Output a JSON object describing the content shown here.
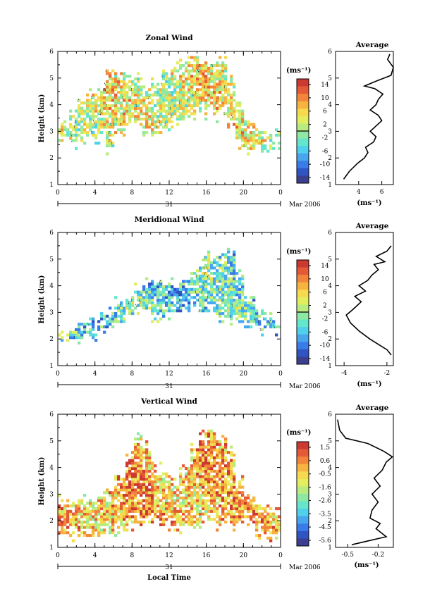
{
  "chart_data": [
    {
      "type": "heatmap",
      "title": "Zonal Wind",
      "ylabel": "Height (km)",
      "ylim": [
        1,
        6
      ],
      "yticks": [
        "1",
        "2",
        "3",
        "4",
        "5",
        "6"
      ],
      "xlim": [
        0,
        24
      ],
      "xticks": [
        "0",
        "4",
        "8",
        "12",
        "16",
        "20",
        "0"
      ],
      "date_day": "31",
      "date_month": "Mar 2006",
      "colorbar": {
        "unit": "(ms⁻¹)",
        "ticks": [
          "14",
          "10",
          "6",
          "2",
          "-2",
          "-6",
          "-10",
          "-14"
        ],
        "levels": [
          14,
          10,
          6,
          2,
          -2,
          -6,
          -10,
          -14
        ],
        "vmin": -16,
        "vmax": 16,
        "zero_line": 0
      },
      "field": {
        "coverage": [
          [
            2.6,
            3.2
          ],
          [
            2.6,
            3.6
          ],
          [
            2.7,
            4.2
          ],
          [
            2.8,
            4.4
          ],
          [
            2.8,
            4.6
          ],
          [
            2.4,
            5.2
          ],
          [
            2.9,
            5.2
          ],
          [
            3.2,
            4.9
          ],
          [
            3.3,
            5.0
          ],
          [
            3.1,
            4.7
          ],
          [
            2.9,
            4.8
          ],
          [
            3.0,
            5.2
          ],
          [
            3.4,
            5.4
          ],
          [
            3.4,
            5.6
          ],
          [
            3.6,
            5.8
          ],
          [
            3.7,
            5.6
          ],
          [
            3.7,
            5.5
          ],
          [
            3.6,
            5.6
          ],
          [
            3.3,
            5.0
          ],
          [
            2.5,
            4.1
          ],
          [
            2.3,
            3.4
          ],
          [
            2.2,
            3.0
          ],
          [
            2.3,
            2.8
          ],
          [
            2.3,
            2.9
          ]
        ],
        "mean": 3.0
      },
      "average_profile": {
        "title": "Average",
        "xlabel": "(ms⁻¹)",
        "xlim": [
          2,
          7
        ],
        "xticks": [
          "4",
          "6"
        ],
        "xtick_values": [
          4,
          6
        ],
        "ylim": [
          1,
          6
        ],
        "yticks": [
          "1",
          "2",
          "3",
          "4",
          "5",
          "6"
        ],
        "values": [
          [
            2.7,
            1.2
          ],
          [
            3.2,
            1.5
          ],
          [
            3.9,
            1.8
          ],
          [
            4.5,
            2.0
          ],
          [
            4.8,
            2.2
          ],
          [
            4.6,
            2.4
          ],
          [
            5.3,
            2.6
          ],
          [
            5.5,
            2.8
          ],
          [
            5.0,
            3.0
          ],
          [
            5.5,
            3.2
          ],
          [
            6.0,
            3.4
          ],
          [
            5.7,
            3.6
          ],
          [
            5.0,
            3.8
          ],
          [
            5.5,
            4.0
          ],
          [
            5.7,
            4.2
          ],
          [
            6.1,
            4.4
          ],
          [
            5.4,
            4.6
          ],
          [
            4.5,
            4.7
          ],
          [
            5.6,
            4.9
          ],
          [
            6.8,
            5.1
          ],
          [
            7.0,
            5.4
          ],
          [
            6.5,
            5.7
          ],
          [
            6.7,
            5.9
          ]
        ]
      }
    },
    {
      "type": "heatmap",
      "title": "Meridional Wind",
      "ylabel": "Height (km)",
      "ylim": [
        1,
        6
      ],
      "yticks": [
        "1",
        "2",
        "3",
        "4",
        "5",
        "6"
      ],
      "xlim": [
        0,
        24
      ],
      "xticks": [
        "0",
        "4",
        "8",
        "12",
        "16",
        "20",
        "0"
      ],
      "date_day": "31",
      "date_month": "Mar 2006",
      "colorbar": {
        "unit": "(ms⁻¹)",
        "ticks": [
          "14",
          "10",
          "6",
          "2",
          "-2",
          "-6",
          "-10",
          "-14"
        ],
        "levels": [
          14,
          10,
          6,
          2,
          -2,
          -6,
          -10,
          -14
        ],
        "vmin": -16,
        "vmax": 16,
        "zero_line": 0
      },
      "field": {
        "coverage": [
          [
            2.0,
            2.2
          ],
          [
            2.0,
            2.4
          ],
          [
            2.0,
            2.6
          ],
          [
            2.1,
            2.6
          ],
          [
            2.3,
            2.8
          ],
          [
            2.4,
            3.0
          ],
          [
            2.6,
            3.4
          ],
          [
            2.8,
            3.6
          ],
          [
            3.1,
            3.9
          ],
          [
            3.0,
            4.1
          ],
          [
            2.9,
            4.2
          ],
          [
            2.9,
            4.0
          ],
          [
            3.0,
            4.1
          ],
          [
            3.0,
            4.2
          ],
          [
            3.2,
            4.5
          ],
          [
            3.0,
            5.0
          ],
          [
            3.0,
            5.3
          ],
          [
            2.8,
            5.2
          ],
          [
            2.7,
            5.4
          ],
          [
            2.6,
            4.5
          ],
          [
            2.4,
            3.6
          ],
          [
            2.4,
            3.0
          ],
          [
            2.4,
            2.8
          ],
          [
            2.4,
            2.6
          ]
        ],
        "mean": -4.0
      },
      "average_profile": {
        "title": "Average",
        "xlabel": "(ms⁻¹)",
        "xlim": [
          -4.4,
          -1.7
        ],
        "xticks": [
          "-4",
          "-2"
        ],
        "xtick_values": [
          -4,
          -2
        ],
        "ylim": [
          1,
          6
        ],
        "yticks": [
          "1",
          "2",
          "3",
          "4",
          "5",
          "6"
        ],
        "values": [
          [
            -1.8,
            1.4
          ],
          [
            -2.0,
            1.6
          ],
          [
            -2.4,
            1.8
          ],
          [
            -2.8,
            2.0
          ],
          [
            -3.3,
            2.3
          ],
          [
            -3.7,
            2.6
          ],
          [
            -3.9,
            2.9
          ],
          [
            -3.6,
            3.1
          ],
          [
            -3.2,
            3.4
          ],
          [
            -3.5,
            3.6
          ],
          [
            -3.0,
            3.8
          ],
          [
            -3.3,
            4.0
          ],
          [
            -2.9,
            4.2
          ],
          [
            -2.7,
            4.4
          ],
          [
            -2.4,
            4.6
          ],
          [
            -2.6,
            4.8
          ],
          [
            -2.1,
            4.9
          ],
          [
            -2.5,
            5.1
          ],
          [
            -2.0,
            5.3
          ],
          [
            -1.8,
            5.5
          ]
        ]
      }
    },
    {
      "type": "heatmap",
      "title": "Vertical Wind",
      "ylabel": "Height (km)",
      "xlabel": "Local Time",
      "ylim": [
        1,
        6
      ],
      "yticks": [
        "1",
        "2",
        "3",
        "4",
        "5",
        "6"
      ],
      "xlim": [
        0,
        24
      ],
      "xticks": [
        "0",
        "4",
        "8",
        "12",
        "16",
        "20",
        "0"
      ],
      "date_day": "31",
      "date_month": "Mar 2006",
      "colorbar": {
        "unit": "(ms⁻¹)",
        "ticks": [
          "1.5",
          "0.6",
          "-0.5",
          "-1.6",
          "-2.6",
          "-3.5",
          "-4.5",
          "-5.6"
        ],
        "levels": [
          1.5,
          0.6,
          -0.5,
          -1.6,
          -2.6,
          -3.5,
          -4.5,
          -5.6
        ],
        "vmin": -6.0,
        "vmax": 2.0
      },
      "field": {
        "coverage": [
          [
            1.5,
            2.8
          ],
          [
            1.4,
            2.7
          ],
          [
            1.4,
            2.8
          ],
          [
            1.4,
            2.8
          ],
          [
            1.5,
            2.9
          ],
          [
            1.6,
            3.2
          ],
          [
            1.7,
            3.6
          ],
          [
            1.8,
            4.5
          ],
          [
            1.9,
            5.2
          ],
          [
            1.9,
            4.8
          ],
          [
            2.0,
            4.0
          ],
          [
            1.9,
            3.8
          ],
          [
            1.8,
            3.5
          ],
          [
            1.8,
            4.0
          ],
          [
            1.8,
            4.7
          ],
          [
            1.9,
            5.3
          ],
          [
            2.0,
            5.4
          ],
          [
            1.9,
            5.0
          ],
          [
            1.8,
            4.6
          ],
          [
            1.9,
            3.6
          ],
          [
            1.8,
            2.9
          ],
          [
            1.6,
            2.6
          ],
          [
            1.5,
            2.4
          ],
          [
            1.5,
            2.3
          ]
        ],
        "mean": -0.1
      },
      "average_profile": {
        "title": "Average",
        "xlabel": "(ms⁻¹)",
        "xlim": [
          -0.62,
          -0.05
        ],
        "xticks": [
          "-0.5",
          "-0.2"
        ],
        "xtick_values": [
          -0.5,
          -0.2
        ],
        "ylim": [
          1,
          6
        ],
        "yticks": [
          "1",
          "2",
          "3",
          "4",
          "5",
          "6"
        ],
        "values": [
          [
            -0.46,
            1.1
          ],
          [
            -0.12,
            1.4
          ],
          [
            -0.22,
            1.7
          ],
          [
            -0.18,
            1.9
          ],
          [
            -0.28,
            2.1
          ],
          [
            -0.26,
            2.4
          ],
          [
            -0.2,
            2.7
          ],
          [
            -0.26,
            3.0
          ],
          [
            -0.18,
            3.3
          ],
          [
            -0.24,
            3.6
          ],
          [
            -0.16,
            3.9
          ],
          [
            -0.12,
            4.2
          ],
          [
            -0.06,
            4.4
          ],
          [
            -0.14,
            4.6
          ],
          [
            -0.3,
            4.9
          ],
          [
            -0.52,
            5.1
          ],
          [
            -0.58,
            5.4
          ],
          [
            -0.6,
            5.8
          ]
        ]
      }
    }
  ]
}
